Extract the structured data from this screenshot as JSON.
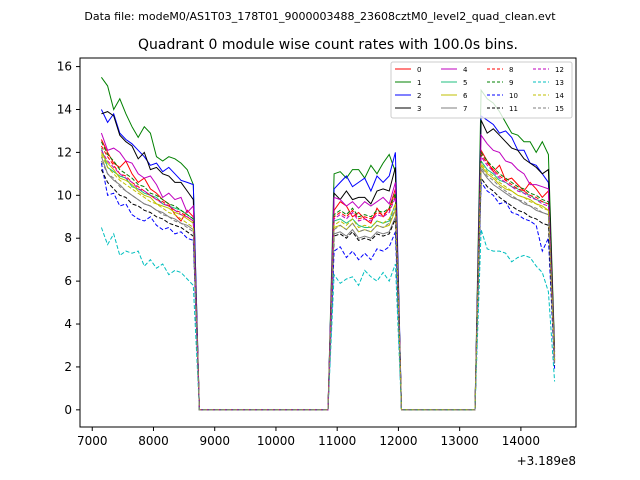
{
  "header": {
    "file_label": "Data file: modeM0/AS1T03_178T01_9000003488_23608cztM0_level2_quad_clean.evt"
  },
  "chart_data": {
    "type": "line",
    "title": "Quadrant 0 module wise count rates with 100.0s bins.",
    "xlabel": "",
    "ylabel": "",
    "x_offset_label": "+3.189e8",
    "xlim": [
      6800,
      14900
    ],
    "ylim": [
      -0.8,
      16.4
    ],
    "xticks": [
      7000,
      8000,
      9000,
      10000,
      11000,
      12000,
      13000,
      14000
    ],
    "yticks": [
      0,
      2,
      4,
      6,
      8,
      10,
      12,
      14,
      16
    ],
    "legend_position": "top-right",
    "segments": [
      {
        "x_start": 7150,
        "x_end": 8650,
        "step": 100
      },
      {
        "x_start": 10950,
        "x_end": 11950,
        "step": 100
      },
      {
        "x_start": 13350,
        "x_end": 14450,
        "step": 100
      }
    ],
    "series": [
      {
        "name": "0",
        "color": "#ff0000",
        "dash": false,
        "seg_values": [
          [
            12.6,
            12.0,
            11.5,
            11.3,
            11.6,
            11.0,
            10.6,
            10.8,
            10.3,
            10.1,
            9.8,
            9.6,
            9.1,
            8.8,
            9.3,
            9.0
          ],
          [
            9.3,
            9.7,
            9.5,
            9.0,
            9.2,
            8.9,
            8.7,
            9.4,
            9.0,
            9.4,
            10.3
          ],
          [
            12.1,
            11.6,
            11.1,
            11.4,
            10.7,
            10.8,
            10.5,
            10.2,
            10.6,
            10.3,
            9.9,
            10.2
          ]
        ]
      },
      {
        "name": "1",
        "color": "#008000",
        "dash": false,
        "seg_values": [
          [
            15.5,
            15.1,
            14.0,
            14.5,
            13.8,
            13.2,
            12.7,
            13.2,
            12.9,
            11.8,
            11.6,
            11.8,
            11.7,
            11.5,
            11.2,
            10.5
          ],
          [
            11.0,
            11.1,
            10.8,
            11.2,
            11.2,
            10.8,
            11.4,
            11.0,
            11.5,
            11.9,
            11.1
          ],
          [
            14.9,
            14.5,
            14.3,
            13.9,
            13.4,
            12.9,
            12.8,
            12.5,
            12.5,
            12.0,
            12.5,
            11.9
          ]
        ]
      },
      {
        "name": "2",
        "color": "#0000ff",
        "dash": false,
        "seg_values": [
          [
            14.0,
            13.4,
            13.8,
            12.9,
            12.6,
            12.4,
            12.1,
            11.8,
            11.4,
            11.5,
            11.1,
            11.3,
            11.0,
            10.7,
            10.6,
            10.5
          ],
          [
            10.3,
            10.6,
            10.9,
            10.4,
            10.6,
            10.8,
            10.2,
            10.9,
            10.6,
            10.9,
            12.0
          ],
          [
            13.7,
            13.5,
            13.3,
            12.9,
            13.0,
            12.7,
            12.1,
            12.1,
            11.5,
            11.4,
            11.0,
            10.6
          ]
        ]
      },
      {
        "name": "3",
        "color": "#000000",
        "dash": false,
        "seg_values": [
          [
            13.8,
            13.9,
            13.7,
            12.8,
            12.5,
            12.3,
            11.7,
            12.0,
            11.2,
            11.3,
            11.0,
            10.9,
            10.6,
            10.6,
            10.2,
            9.8
          ],
          [
            10.1,
            9.8,
            10.2,
            9.8,
            9.9,
            9.9,
            9.6,
            10.2,
            10.3,
            10.2,
            11.3
          ],
          [
            13.5,
            12.9,
            13.1,
            12.8,
            12.5,
            12.2,
            12.1,
            11.7,
            11.5,
            11.3,
            11.0,
            11.2
          ]
        ]
      },
      {
        "name": "4",
        "color": "#bf00bf",
        "dash": false,
        "seg_values": [
          [
            12.9,
            12.1,
            12.2,
            12.0,
            11.6,
            11.5,
            11.0,
            10.8,
            10.9,
            10.5,
            9.9,
            10.1,
            9.8,
            9.9,
            9.2,
            9.5
          ],
          [
            9.9,
            9.8,
            9.5,
            9.7,
            9.4,
            9.7,
            9.5,
            9.7,
            9.9,
            9.6,
            10.6
          ],
          [
            12.8,
            12.4,
            12.1,
            12.0,
            11.6,
            11.5,
            11.2,
            11.0,
            10.5,
            10.5,
            10.4,
            10.3
          ]
        ]
      },
      {
        "name": "5",
        "color": "#1fbf7f",
        "dash": false,
        "seg_values": [
          [
            12.2,
            11.3,
            11.1,
            10.9,
            10.8,
            10.4,
            10.3,
            10.1,
            10.0,
            9.9,
            9.6,
            9.5,
            9.4,
            9.3,
            9.1,
            8.9
          ],
          [
            8.8,
            8.9,
            8.7,
            8.9,
            8.6,
            8.5,
            8.5,
            8.8,
            8.7,
            8.8,
            9.6
          ],
          [
            11.6,
            11.2,
            11.0,
            10.7,
            10.6,
            10.4,
            10.3,
            10.1,
            10.0,
            9.8,
            9.7,
            9.6
          ]
        ]
      },
      {
        "name": "6",
        "color": "#bfbf00",
        "dash": false,
        "seg_values": [
          [
            12.0,
            11.5,
            11.2,
            10.8,
            10.7,
            10.5,
            10.2,
            10.0,
            9.9,
            9.6,
            9.5,
            9.4,
            9.2,
            9.1,
            8.9,
            8.7
          ],
          [
            8.5,
            8.6,
            8.4,
            8.7,
            8.3,
            8.4,
            8.3,
            8.6,
            8.5,
            8.6,
            9.3
          ],
          [
            11.4,
            11.0,
            10.8,
            10.5,
            10.3,
            10.2,
            10.0,
            9.9,
            9.8,
            9.6,
            9.5,
            9.3
          ]
        ]
      },
      {
        "name": "7",
        "color": "#7f7f7f",
        "dash": false,
        "seg_values": [
          [
            11.8,
            11.0,
            10.7,
            10.5,
            10.2,
            10.0,
            9.8,
            9.6,
            9.5,
            9.3,
            9.2,
            9.0,
            8.9,
            8.7,
            8.6,
            8.4
          ],
          [
            8.2,
            8.3,
            8.1,
            8.4,
            8.0,
            8.1,
            8.0,
            8.3,
            8.2,
            8.3,
            9.0
          ],
          [
            11.2,
            10.8,
            10.5,
            10.3,
            10.1,
            9.9,
            9.8,
            9.6,
            9.5,
            9.3,
            9.2,
            9.1
          ]
        ]
      },
      {
        "name": "8",
        "color": "#ff0000",
        "dash": true,
        "seg_values": [
          [
            12.3,
            11.8,
            11.4,
            11.0,
            10.9,
            10.6,
            10.4,
            10.2,
            10.0,
            9.8,
            9.7,
            9.5,
            9.3,
            9.2,
            9.0,
            8.8
          ],
          [
            9.0,
            9.2,
            9.0,
            9.3,
            8.9,
            9.0,
            8.9,
            9.2,
            9.1,
            9.3,
            10.0
          ],
          [
            11.9,
            11.5,
            11.2,
            10.9,
            10.7,
            10.5,
            10.3,
            10.2,
            10.0,
            9.9,
            9.7,
            9.6
          ]
        ]
      },
      {
        "name": "9",
        "color": "#008000",
        "dash": true,
        "seg_values": [
          [
            12.5,
            11.9,
            11.6,
            11.2,
            11.0,
            10.8,
            10.5,
            10.4,
            10.1,
            10.0,
            9.8,
            9.6,
            9.5,
            9.3,
            9.1,
            8.9
          ],
          [
            9.1,
            9.3,
            9.1,
            9.4,
            9.0,
            9.1,
            9.0,
            9.3,
            9.2,
            9.4,
            10.1
          ],
          [
            12.0,
            11.6,
            11.3,
            11.0,
            10.8,
            10.6,
            10.4,
            10.3,
            10.1,
            10.0,
            9.8,
            9.7
          ]
        ]
      },
      {
        "name": "10",
        "color": "#0000ff",
        "dash": true,
        "seg_values": [
          [
            11.5,
            10.0,
            10.1,
            9.5,
            9.6,
            9.1,
            8.9,
            8.8,
            9.0,
            8.6,
            8.4,
            8.5,
            8.2,
            8.3,
            8.0,
            7.9
          ],
          [
            7.4,
            7.6,
            7.1,
            7.4,
            7.0,
            7.3,
            7.0,
            7.5,
            7.4,
            7.6,
            8.3
          ],
          [
            10.6,
            10.2,
            10.0,
            9.6,
            9.7,
            9.2,
            9.1,
            8.9,
            8.8,
            8.6,
            7.4,
            8.0
          ]
        ]
      },
      {
        "name": "11",
        "color": "#000000",
        "dash": true,
        "seg_values": [
          [
            11.2,
            10.6,
            10.3,
            10.0,
            9.9,
            9.6,
            9.5,
            9.3,
            9.2,
            9.0,
            8.9,
            8.7,
            8.6,
            8.5,
            8.3,
            8.1
          ],
          [
            8.1,
            8.2,
            8.0,
            8.3,
            7.9,
            8.0,
            7.9,
            8.2,
            8.1,
            8.2,
            8.9
          ],
          [
            10.8,
            10.4,
            10.2,
            9.9,
            9.7,
            9.5,
            9.3,
            9.2,
            9.0,
            8.9,
            8.7,
            8.6
          ]
        ]
      },
      {
        "name": "12",
        "color": "#bf00bf",
        "dash": true,
        "seg_values": [
          [
            12.1,
            11.6,
            11.3,
            11.0,
            10.8,
            10.6,
            10.3,
            10.2,
            10.0,
            9.8,
            9.6,
            9.5,
            9.3,
            9.1,
            9.0,
            8.8
          ],
          [
            8.9,
            9.1,
            8.9,
            9.2,
            8.8,
            8.9,
            8.8,
            9.1,
            9.0,
            9.2,
            9.9
          ],
          [
            11.8,
            11.4,
            11.1,
            10.8,
            10.6,
            10.4,
            10.2,
            10.1,
            9.9,
            9.8,
            9.6,
            9.5
          ]
        ]
      },
      {
        "name": "13",
        "color": "#00bfbf",
        "dash": true,
        "seg_values": [
          [
            8.5,
            7.7,
            8.2,
            7.2,
            7.4,
            7.3,
            7.4,
            6.7,
            7.0,
            6.6,
            6.8,
            6.3,
            6.5,
            6.4,
            6.1,
            5.8
          ],
          [
            6.3,
            5.9,
            6.1,
            6.2,
            5.8,
            6.5,
            6.2,
            6.0,
            6.4,
            6.0,
            6.8
          ],
          [
            8.4,
            7.5,
            7.4,
            7.4,
            7.3,
            6.9,
            7.1,
            7.2,
            7.1,
            6.7,
            6.4,
            5.5
          ]
        ]
      },
      {
        "name": "14",
        "color": "#bfbf00",
        "dash": true,
        "seg_values": [
          [
            11.9,
            11.3,
            11.0,
            10.7,
            10.5,
            10.3,
            10.1,
            9.9,
            9.7,
            9.6,
            9.4,
            9.2,
            9.1,
            8.9,
            8.7,
            8.5
          ],
          [
            8.6,
            8.8,
            8.6,
            8.9,
            8.5,
            8.6,
            8.5,
            8.8,
            8.7,
            8.9,
            9.6
          ],
          [
            11.5,
            11.1,
            10.9,
            10.6,
            10.4,
            10.2,
            10.0,
            9.9,
            9.7,
            9.6,
            9.4,
            9.3
          ]
        ]
      },
      {
        "name": "15",
        "color": "#7f7f7f",
        "dash": true,
        "seg_values": [
          [
            11.6,
            11.0,
            10.8,
            10.4,
            10.2,
            10.0,
            9.8,
            9.6,
            9.5,
            9.3,
            9.1,
            9.0,
            8.8,
            8.7,
            8.5,
            8.3
          ],
          [
            8.4,
            8.6,
            8.4,
            8.7,
            8.3,
            8.4,
            8.3,
            8.6,
            8.5,
            8.7,
            9.4
          ],
          [
            11.3,
            10.9,
            10.7,
            10.4,
            10.2,
            10.0,
            9.8,
            9.7,
            9.5,
            9.4,
            9.2,
            9.1
          ]
        ]
      }
    ]
  }
}
